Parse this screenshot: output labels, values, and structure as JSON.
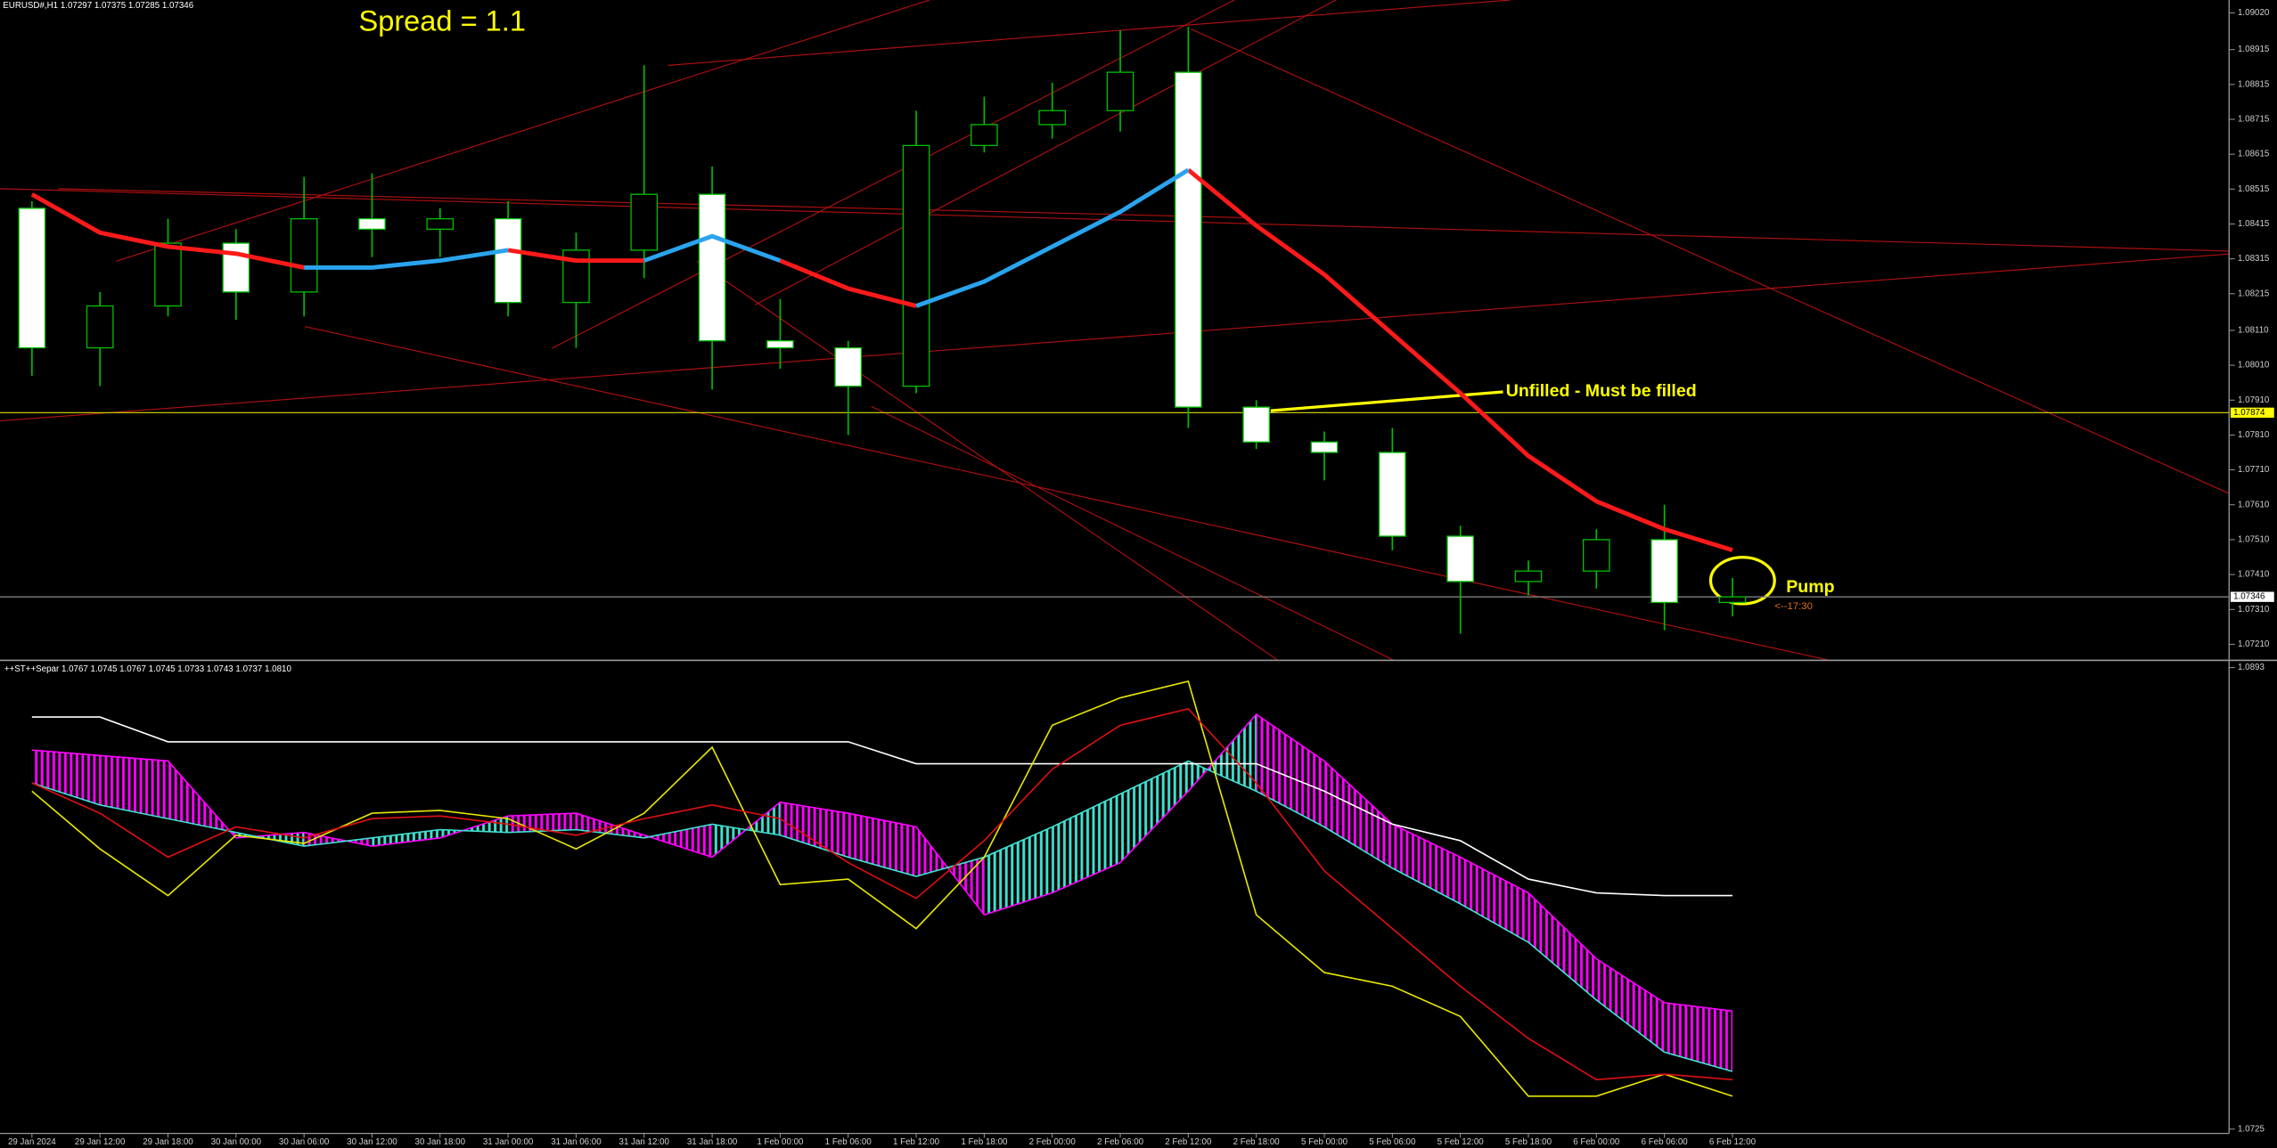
{
  "chart_data": [
    {
      "type": "candlestick",
      "title": "EURUSD#,H1  1.07297 1.07375 1.07285 1.07346",
      "categories": [
        "29 Jan 2024",
        "29 Jan 12:00",
        "29 Jan 18:00",
        "30 Jan 00:00",
        "30 Jan 06:00",
        "30 Jan 12:00",
        "30 Jan 18:00",
        "31 Jan 00:00",
        "31 Jan 06:00",
        "31 Jan 12:00",
        "31 Jan 18:00",
        "1 Feb 00:00",
        "1 Feb 06:00",
        "1 Feb 12:00",
        "1 Feb 18:00",
        "2 Feb 00:00",
        "2 Feb 06:00",
        "2 Feb 12:00",
        "2 Feb 18:00",
        "5 Feb 00:00",
        "5 Feb 06:00",
        "5 Feb 12:00",
        "5 Feb 18:00",
        "6 Feb 00:00",
        "6 Feb 06:00",
        "6 Feb 12:00"
      ],
      "open": [
        1.0846,
        1.0806,
        1.0818,
        1.0836,
        1.0822,
        1.0843,
        1.084,
        1.0843,
        1.0819,
        1.0834,
        1.085,
        1.0808,
        1.0806,
        1.0795,
        1.0864,
        1.087,
        1.0874,
        1.0885,
        1.0789,
        1.0779,
        1.0776,
        1.0752,
        1.0739,
        1.0742,
        1.0751,
        1.0733
      ],
      "high": [
        1.0848,
        1.0822,
        1.0843,
        1.084,
        1.0855,
        1.0856,
        1.0846,
        1.0848,
        1.0839,
        1.0887,
        1.0858,
        1.082,
        1.0808,
        1.0874,
        1.0878,
        1.0882,
        1.0897,
        1.0898,
        1.0791,
        1.0782,
        1.0783,
        1.0755,
        1.0745,
        1.0754,
        1.0761,
        1.074
      ],
      "low": [
        1.0798,
        1.0795,
        1.0815,
        1.0814,
        1.0815,
        1.0832,
        1.0832,
        1.0815,
        1.0806,
        1.0826,
        1.0794,
        1.08,
        1.0781,
        1.0793,
        1.0862,
        1.0866,
        1.0868,
        1.0783,
        1.0777,
        1.0768,
        1.0748,
        1.0724,
        1.0735,
        1.0737,
        1.0725,
        1.0729
      ],
      "close": [
        1.0806,
        1.0818,
        1.0836,
        1.0822,
        1.0843,
        1.084,
        1.0843,
        1.0819,
        1.0834,
        1.085,
        1.0808,
        1.0806,
        1.0795,
        1.0864,
        1.087,
        1.0874,
        1.0885,
        1.0789,
        1.0779,
        1.0776,
        1.0752,
        1.0739,
        1.0742,
        1.0751,
        1.0733,
        1.07346
      ],
      "up_color": "#000000",
      "down_color": "#ffffff",
      "wick_color": "#00c000",
      "series": [
        {
          "color": "#ff1a1a",
          "values": [
            1.085,
            1.0839,
            1.0835,
            1.0833,
            1.0829,
            null,
            null,
            1.0834,
            1.0831,
            1.0831,
            null,
            1.0831,
            1.0823,
            1.0818,
            null,
            null,
            null,
            1.0857,
            1.0841,
            1.0827,
            1.081,
            1.0793,
            1.0775,
            1.0762,
            1.0754,
            1.0748
          ]
        },
        {
          "color": "#2aa4ee",
          "values": [
            null,
            null,
            null,
            null,
            1.0829,
            1.0829,
            1.0831,
            1.0834,
            null,
            1.0831,
            1.0838,
            1.0831,
            null,
            1.0818,
            1.0825,
            1.0835,
            1.0845,
            1.0857,
            null,
            null,
            null,
            null,
            null,
            null,
            null,
            null
          ]
        }
      ],
      "ylim": [
        1.07164,
        1.09057
      ],
      "yticks": [
        {
          "value": 1.0902,
          "label": "1.09020"
        },
        1.08915,
        1.08815,
        1.08715,
        1.08615,
        1.08515,
        1.08415,
        1.08315,
        1.08215,
        {
          "value": 1.0811,
          "label": "1.08110"
        },
        {
          "value": 1.0801,
          "label": "1.08010"
        },
        {
          "value": 1.0791,
          "label": "1.07910"
        },
        {
          "value": 1.0781,
          "label": "1.07810"
        },
        {
          "value": 1.0771,
          "label": "1.07710"
        },
        {
          "value": 1.0761,
          "label": "1.07610"
        },
        {
          "value": 1.0751,
          "label": "1.07510"
        },
        {
          "value": 1.0741,
          "label": "1.07410"
        },
        {
          "value": 1.0731,
          "label": "1.07310"
        },
        {
          "value": 1.0721,
          "label": "1.07210"
        }
      ],
      "hlines": [
        {
          "value": 1.07874,
          "color": "#c8c800"
        },
        {
          "value": 1.07346,
          "color": "#808080"
        }
      ],
      "annotations": [
        "Spread = 1.1",
        "Unfilled - Must be filled",
        "Pump",
        "<--17:30"
      ]
    },
    {
      "type": "line",
      "title": "++ST++Separ 1.0767 1.0745 1.0767 1.0745 1.0733 1.0743 1.0737 1.0810",
      "ylim": [
        1.0725,
        1.0893
      ],
      "yticks": [
        1.0893,
        1.0725
      ],
      "cloud": {
        "colors": [
          "#ff00ff",
          "#40e0d0"
        ],
        "a": [
          1.0863,
          1.0861,
          1.0859,
          1.0831,
          1.0833,
          1.0828,
          1.0831,
          1.0839,
          1.084,
          1.0832,
          1.0824,
          1.0844,
          1.084,
          1.0835,
          1.0803,
          1.0811,
          1.0822,
          1.0848,
          1.0876,
          1.0859,
          1.0836,
          1.0824,
          1.0811,
          1.0787,
          1.0771,
          1.0768
        ],
        "b": [
          1.0851,
          1.0843,
          1.0838,
          1.0833,
          1.0828,
          1.0831,
          1.0834,
          1.0833,
          1.0834,
          1.0831,
          1.0836,
          1.0832,
          1.0824,
          1.0817,
          1.0824,
          1.0835,
          1.0847,
          1.0859,
          1.0848,
          1.0835,
          1.082,
          1.0807,
          1.0793,
          1.0772,
          1.0753,
          1.0746
        ]
      },
      "series": [
        {
          "color": "#ffffff",
          "values": [
            1.0875,
            1.0875,
            1.0866,
            1.0866,
            1.0866,
            1.0866,
            1.0866,
            1.0866,
            1.0866,
            1.0866,
            1.0866,
            1.0866,
            1.0866,
            1.0858,
            1.0858,
            1.0858,
            1.0858,
            1.0858,
            1.0858,
            1.0848,
            1.0836,
            1.083,
            1.0816,
            1.0811,
            1.081,
            1.081
          ]
        },
        {
          "color": "#e6e600",
          "values": [
            1.0848,
            1.0827,
            1.081,
            1.0832,
            1.0829,
            1.084,
            1.0841,
            1.0838,
            1.0827,
            1.084,
            1.0864,
            1.0814,
            1.0816,
            1.0798,
            1.0824,
            1.0872,
            1.0882,
            1.0888,
            1.0803,
            1.0782,
            1.0777,
            1.0766,
            1.0737,
            1.0737,
            1.0745,
            1.0737
          ]
        },
        {
          "color": "#e01010",
          "values": [
            1.0851,
            1.084,
            1.0824,
            1.0835,
            1.0831,
            1.0838,
            1.0839,
            1.0836,
            1.0832,
            1.0838,
            1.0843,
            1.0838,
            1.0822,
            1.0809,
            1.083,
            1.0856,
            1.0872,
            1.0878,
            1.0851,
            1.0819,
            1.0798,
            1.0777,
            1.0758,
            1.0743,
            1.0745,
            1.0743
          ]
        }
      ]
    }
  ]
}
